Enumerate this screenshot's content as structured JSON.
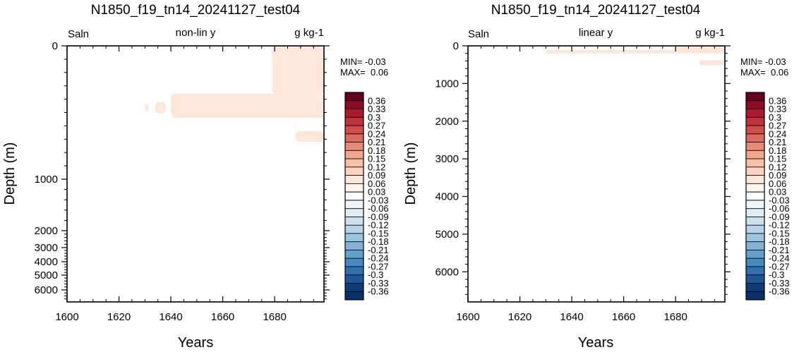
{
  "chart_data": [
    {
      "type": "heatmap",
      "title": "N1850_f19_tn14_20241127_test04",
      "variable_label": "Saln",
      "scale_label": "non-lin y",
      "units_label": "g kg-1",
      "xlabel": "Years",
      "ylabel": "Depth (m)",
      "xlim": [
        1600,
        1699
      ],
      "xticks": [
        1600,
        1620,
        1640,
        1660,
        1680
      ],
      "y_scale": "non-linear",
      "ylim": [
        0,
        6800
      ],
      "yticks": [
        0,
        1000,
        2000,
        3000,
        4000,
        5000,
        6000
      ],
      "min_label": "MIN= -0.03",
      "max_label": "MAX=  0.06",
      "fill_color": "#fde6da",
      "fill_value_range": [
        0.03,
        0.06
      ],
      "anomaly_regions": [
        {
          "x": [
            1630,
            1631.5
          ],
          "depth": [
            440,
            490
          ]
        },
        {
          "x": [
            1634,
            1638
          ],
          "depth": [
            420,
            510
          ]
        },
        {
          "x": [
            1640,
            1699
          ],
          "depth": [
            360,
            540
          ]
        },
        {
          "x": [
            1679,
            1699
          ],
          "depth": [
            0,
            360
          ]
        },
        {
          "x": [
            1688,
            1699
          ],
          "depth": [
            640,
            720
          ]
        }
      ]
    },
    {
      "type": "heatmap",
      "title": "N1850_f19_tn14_20241127_test04",
      "variable_label": "Saln",
      "scale_label": "linear y",
      "units_label": "g kg-1",
      "xlabel": "Years",
      "ylabel": "Depth (m)",
      "xlim": [
        1600,
        1699
      ],
      "xticks": [
        1600,
        1620,
        1640,
        1660,
        1680
      ],
      "y_scale": "linear",
      "ylim": [
        0,
        6800
      ],
      "yticks": [
        0,
        1000,
        2000,
        3000,
        4000,
        5000,
        6000
      ],
      "min_label": "MIN= -0.03",
      "max_label": "MAX=  0.06",
      "fill_color": "#fde6da",
      "fill_value_range": [
        0.03,
        0.06
      ],
      "anomaly_regions": [
        {
          "x": [
            1630,
            1699
          ],
          "depth": [
            110,
            200
          ]
        },
        {
          "x": [
            1680,
            1699
          ],
          "depth": [
            0,
            130
          ]
        },
        {
          "x": [
            1689,
            1699
          ],
          "depth": [
            380,
            520
          ]
        }
      ]
    }
  ],
  "colorbar": {
    "labels": [
      "0.36",
      "0.33",
      "0.3",
      "0.27",
      "0.24",
      "0.21",
      "0.18",
      "0.15",
      "0.12",
      "0.09",
      "0.06",
      "0.03",
      "-0.03",
      "-0.06",
      "-0.09",
      "-0.12",
      "-0.15",
      "-0.18",
      "-0.21",
      "-0.24",
      "-0.27",
      "-0.3",
      "-0.33",
      "-0.36"
    ],
    "colors": [
      "#67001f",
      "#8c0a26",
      "#ab1a2d",
      "#c0323a",
      "#cf4d4b",
      "#dc6b5f",
      "#e78a75",
      "#f0a78d",
      "#f6c1a7",
      "#fad4c0",
      "#fde6da",
      "#fff5ef",
      "#ffffff",
      "#eef4f9",
      "#e0ecf4",
      "#cde0ee",
      "#b7d3e8",
      "#9ec5e0",
      "#83b3d6",
      "#63a0cb",
      "#4688bf",
      "#2f70ae",
      "#1d5596",
      "#0e3e7a",
      "#08306b"
    ]
  }
}
